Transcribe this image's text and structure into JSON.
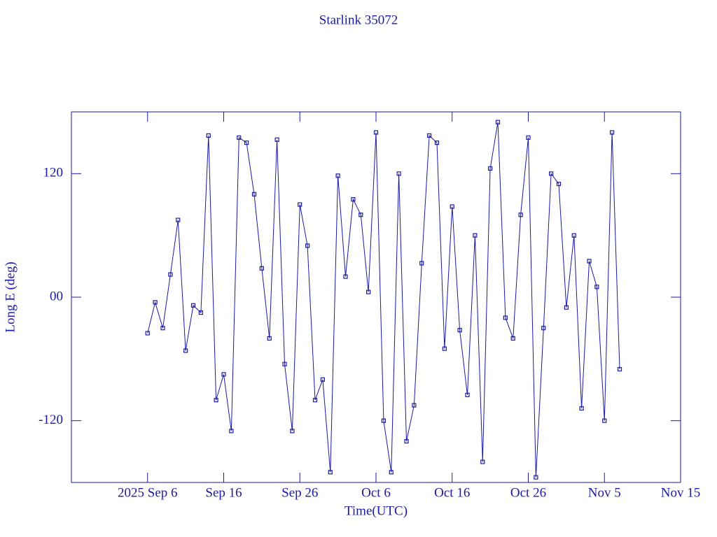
{
  "chart_data": {
    "type": "line",
    "title": "Starlink 35072",
    "x_label": "Time(UTC)",
    "y_label": "Long E (deg)",
    "color": "#1a1aa6",
    "xlim": [
      "2025-08-27",
      "2025-11-15"
    ],
    "xticks": [
      {
        "value": "2025-09-06",
        "label": "2025 Sep 6"
      },
      {
        "value": "2025-09-16",
        "label": "Sep 16"
      },
      {
        "value": "2025-09-26",
        "label": "Sep 26"
      },
      {
        "value": "2025-10-06",
        "label": "Oct 6"
      },
      {
        "value": "2025-10-16",
        "label": "Oct 16"
      },
      {
        "value": "2025-10-26",
        "label": "Oct 26"
      },
      {
        "value": "2025-11-05",
        "label": "Nov 5"
      },
      {
        "value": "2025-11-15",
        "label": "Nov 15"
      }
    ],
    "ylim": [
      -180,
      180
    ],
    "yticks": [
      -120,
      {
        "value": 0,
        "label": "00"
      },
      120
    ],
    "x": [
      "2025-09-06",
      "2025-09-07",
      "2025-09-08",
      "2025-09-09",
      "2025-09-10",
      "2025-09-11",
      "2025-09-12",
      "2025-09-13",
      "2025-09-14",
      "2025-09-15",
      "2025-09-16",
      "2025-09-17",
      "2025-09-18",
      "2025-09-19",
      "2025-09-20",
      "2025-09-21",
      "2025-09-22",
      "2025-09-23",
      "2025-09-24",
      "2025-09-25",
      "2025-09-26",
      "2025-09-27",
      "2025-09-28",
      "2025-09-29",
      "2025-09-30",
      "2025-10-01",
      "2025-10-02",
      "2025-10-03",
      "2025-10-04",
      "2025-10-05",
      "2025-10-06",
      "2025-10-07",
      "2025-10-08",
      "2025-10-09",
      "2025-10-10",
      "2025-10-11",
      "2025-10-12",
      "2025-10-13",
      "2025-10-14",
      "2025-10-15",
      "2025-10-16",
      "2025-10-17",
      "2025-10-18",
      "2025-10-19",
      "2025-10-20",
      "2025-10-21",
      "2025-10-22",
      "2025-10-23",
      "2025-10-24",
      "2025-10-25",
      "2025-10-26",
      "2025-10-27",
      "2025-10-28",
      "2025-10-29",
      "2025-10-30",
      "2025-10-31",
      "2025-11-01",
      "2025-11-02",
      "2025-11-03",
      "2025-11-04",
      "2025-11-05",
      "2025-11-06",
      "2025-11-07"
    ],
    "values": [
      -35,
      -5,
      -30,
      22,
      75,
      -52,
      -8,
      -15,
      157,
      -100,
      -75,
      -130,
      155,
      150,
      100,
      28,
      -40,
      153,
      -65,
      -130,
      90,
      50,
      -100,
      -80,
      -170,
      118,
      20,
      95,
      80,
      5,
      160,
      -120,
      -170,
      120,
      -140,
      -105,
      33,
      157,
      150,
      -50,
      88,
      -32,
      -95,
      60,
      -160,
      125,
      170,
      -20,
      -40,
      80,
      155,
      -175,
      -30,
      120,
      110,
      -10,
      60,
      -108,
      35,
      10,
      -120,
      160,
      -70
    ]
  }
}
